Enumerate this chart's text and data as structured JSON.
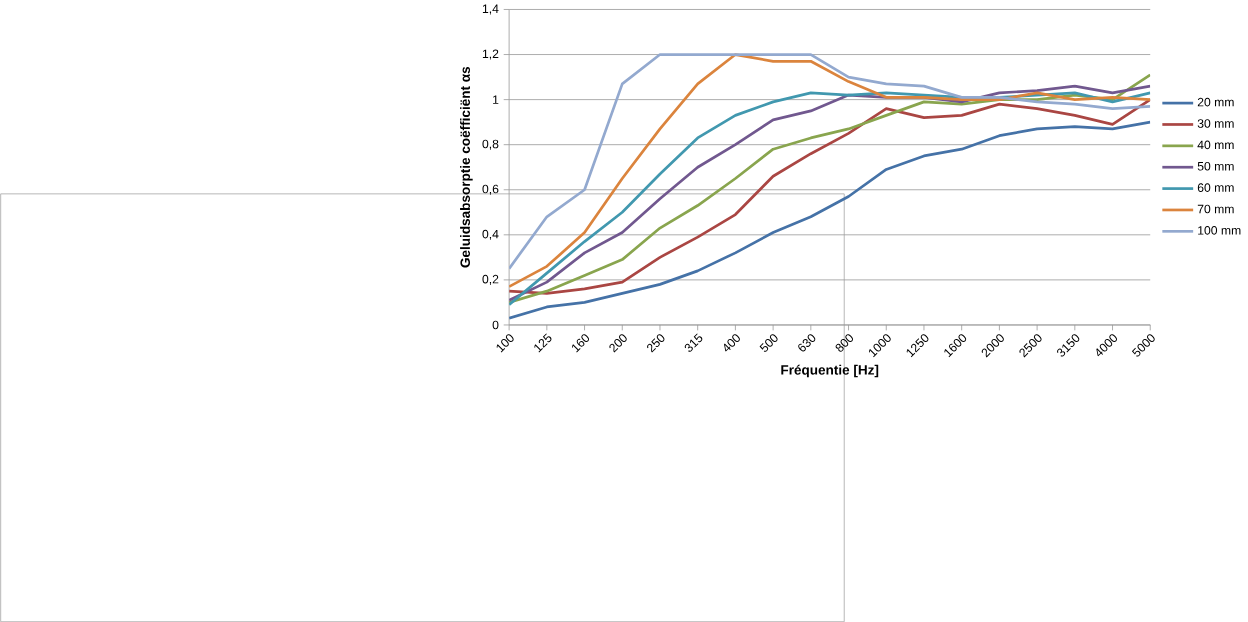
{
  "chart_data": {
    "type": "line",
    "xlabel": "Fréquentie [Hz]",
    "ylabel": "Geluidsabsorptie coëfficiënt αs",
    "categories": [
      "100",
      "125",
      "160",
      "200",
      "250",
      "315",
      "400",
      "500",
      "630",
      "800",
      "1000",
      "1250",
      "1600",
      "2000",
      "2500",
      "3150",
      "4000",
      "5000"
    ],
    "ylim": [
      0,
      1.4
    ],
    "yticks": [
      0,
      {
        "value": 0.2,
        "label": "0,2"
      },
      {
        "value": 0.4,
        "label": "0,4"
      },
      {
        "value": 0.6,
        "label": "0,6"
      },
      {
        "value": 0.8,
        "label": "0,8"
      },
      1,
      {
        "value": 1.2,
        "label": "1,2"
      },
      {
        "value": 1.4,
        "label": "1,4"
      }
    ],
    "grid": "y",
    "legend": "right",
    "marker": "none",
    "line_style": "solid",
    "series": [
      {
        "name": "20 mm",
        "color": "#4572a7",
        "values": [
          0.03,
          0.08,
          0.1,
          0.14,
          0.18,
          0.24,
          0.32,
          0.41,
          0.48,
          0.57,
          0.69,
          0.75,
          0.78,
          0.84,
          0.87,
          0.88,
          0.87,
          0.9
        ]
      },
      {
        "name": "30 mm",
        "color": "#aa4643",
        "values": [
          0.15,
          0.14,
          0.16,
          0.19,
          0.3,
          0.39,
          0.49,
          0.66,
          0.76,
          0.85,
          0.96,
          0.92,
          0.93,
          0.98,
          0.96,
          0.93,
          0.89,
          1.0
        ]
      },
      {
        "name": "40 mm",
        "color": "#89a54e",
        "values": [
          0.1,
          0.15,
          0.22,
          0.29,
          0.43,
          0.53,
          0.65,
          0.78,
          0.83,
          0.87,
          0.93,
          0.99,
          0.98,
          1.0,
          1.0,
          1.02,
          1.0,
          1.11
        ]
      },
      {
        "name": "50 mm",
        "color": "#71588f",
        "values": [
          0.11,
          0.19,
          0.32,
          0.41,
          0.56,
          0.7,
          0.8,
          0.91,
          0.95,
          1.02,
          1.01,
          1.01,
          0.99,
          1.03,
          1.04,
          1.06,
          1.03,
          1.06
        ]
      },
      {
        "name": "60 mm",
        "color": "#4198af",
        "values": [
          0.09,
          0.23,
          0.37,
          0.5,
          0.67,
          0.83,
          0.93,
          0.99,
          1.03,
          1.02,
          1.03,
          1.02,
          1.01,
          1.01,
          1.02,
          1.03,
          0.99,
          1.03
        ]
      },
      {
        "name": "70 mm",
        "color": "#db843d",
        "values": [
          0.17,
          0.26,
          0.41,
          0.65,
          0.87,
          1.07,
          1.2,
          1.17,
          1.17,
          1.08,
          1.01,
          1.01,
          1.0,
          1.0,
          1.03,
          1.0,
          1.01,
          1.0
        ]
      },
      {
        "name": "100 mm",
        "color": "#93a9cf",
        "values": [
          0.25,
          0.48,
          0.6,
          1.07,
          1.2,
          1.2,
          1.2,
          1.2,
          1.2,
          1.1,
          1.07,
          1.06,
          1.01,
          1.01,
          0.99,
          0.98,
          0.96,
          0.97
        ]
      }
    ]
  }
}
